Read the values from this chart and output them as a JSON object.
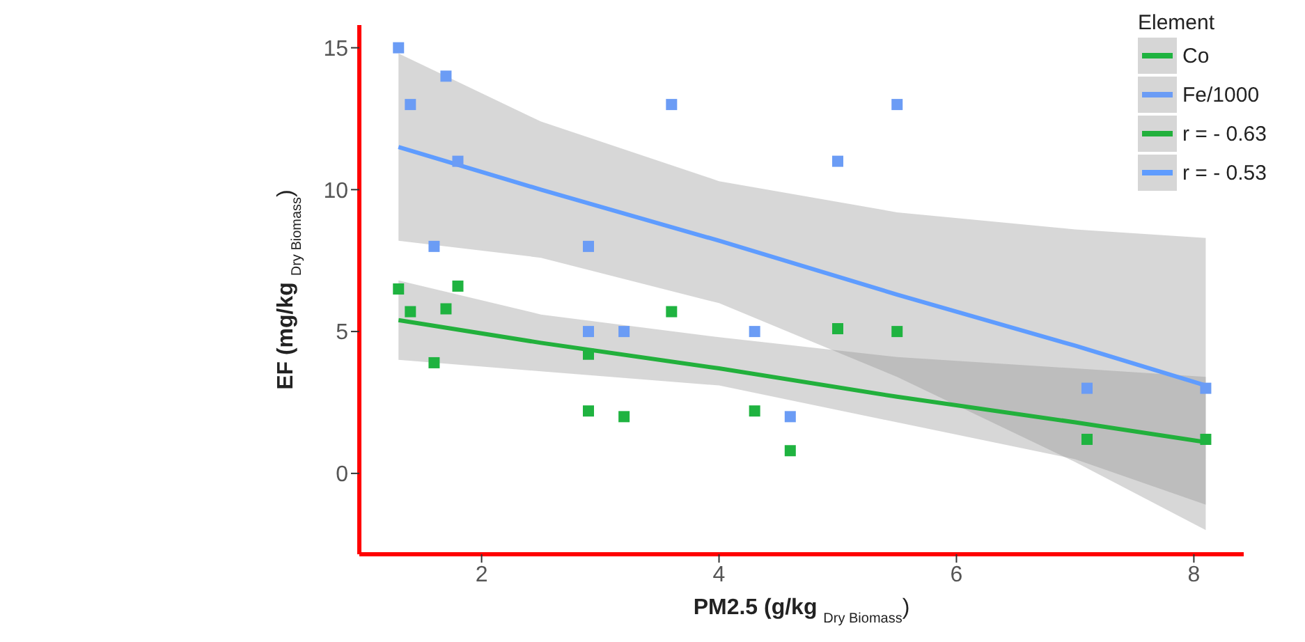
{
  "chart_data": {
    "type": "scatter",
    "xlabel": "PM2.5 (g/kg $_{Dry Biomass}$)",
    "ylabel": "EF (mg/kg $_{Dry Biomass}$)",
    "legend_title": "Element",
    "xlim": [
      0.97,
      8.42
    ],
    "ylim": [
      -2.85,
      15.8
    ],
    "xticks": [
      2,
      4,
      6,
      8
    ],
    "yticks": [
      0,
      5,
      10,
      15
    ],
    "grid": false,
    "legend": "top right",
    "marker": "square",
    "series": [
      {
        "name": "Co",
        "color": "#1fb340",
        "x": [
          1.3,
          1.4,
          1.7,
          1.8,
          1.6,
          2.9,
          2.9,
          3.2,
          3.6,
          4.3,
          4.6,
          5.0,
          5.5,
          7.1,
          8.1
        ],
        "values": [
          6.5,
          5.7,
          5.8,
          6.6,
          3.9,
          4.2,
          2.2,
          2.0,
          5.7,
          2.2,
          0.8,
          5.1,
          5.0,
          1.2,
          1.2
        ]
      },
      {
        "name": "Fe/1000",
        "color": "#6b9cf5",
        "x": [
          1.3,
          1.4,
          1.7,
          1.8,
          1.6,
          2.9,
          2.9,
          3.2,
          3.6,
          4.3,
          4.6,
          5.0,
          5.5,
          7.1,
          8.1
        ],
        "values": [
          15,
          13,
          14,
          11,
          8,
          8,
          5,
          5,
          13,
          5,
          2,
          11,
          13,
          3,
          3
        ]
      },
      {
        "name": "r = - 0.63",
        "type": "line",
        "marker": "none",
        "line_style": "solid",
        "color": "#22b03c",
        "x": [
          1.3,
          2.5,
          4,
          5.5,
          7,
          8.1
        ],
        "values": [
          5.4,
          4.6,
          3.7,
          2.7,
          1.8,
          1.1
        ],
        "lower": [
          4.0,
          3.6,
          3.1,
          1.8,
          0.5,
          -1.1
        ],
        "upper": [
          6.8,
          5.6,
          4.8,
          4.1,
          3.7,
          3.4
        ]
      },
      {
        "name": "r = - 0.53",
        "type": "line",
        "marker": "none",
        "line_style": "solid",
        "color": "#5f9cff",
        "x": [
          1.3,
          2.5,
          4,
          5.5,
          7,
          8.1
        ],
        "values": [
          11.5,
          10.0,
          8.2,
          6.3,
          4.5,
          3.1
        ],
        "lower": [
          8.2,
          7.6,
          6.0,
          3.4,
          0.4,
          -2.0
        ],
        "upper": [
          14.8,
          12.4,
          10.3,
          9.2,
          8.6,
          8.3
        ]
      }
    ]
  }
}
